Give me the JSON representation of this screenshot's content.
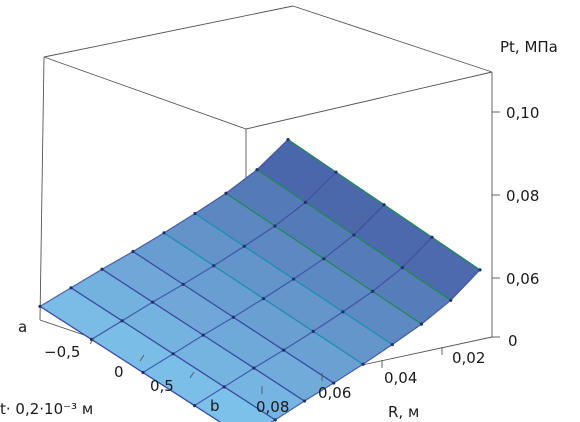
{
  "chart_data": {
    "type": "surface",
    "title": "",
    "z_axis": {
      "label": "Pt, МПа",
      "ticks": [
        "0",
        "0,06",
        "0,08",
        "0,10"
      ],
      "tick_values": [
        0.05,
        0.06,
        0.08,
        0.1
      ]
    },
    "x_axis": {
      "label": "R, м",
      "ticks": [
        "0,08",
        "0,06",
        "0,04",
        "0,02"
      ],
      "range": [
        0.08,
        0.01
      ]
    },
    "y_axis": {
      "label": "t· 0,2·10⁻³ м",
      "ticks": [
        "−0,5",
        "0",
        "0,5"
      ],
      "end_labels": [
        "a",
        "b"
      ]
    },
    "surface_values": {
      "description_axes": "rows: R from 0.09 (front) to 0.01 (back); columns: t from a to b",
      "R": [
        0.09,
        0.08,
        0.07,
        0.06,
        0.05,
        0.04,
        0.03,
        0.02,
        0.01
      ],
      "t": [
        -1,
        -0.5,
        0,
        0.5,
        1
      ],
      "Pt": [
        [
          0.058,
          0.057,
          0.056,
          0.055,
          0.054
        ],
        [
          0.062,
          0.061,
          0.06,
          0.059,
          0.058
        ],
        [
          0.066,
          0.065,
          0.064,
          0.063,
          0.062
        ],
        [
          0.069,
          0.068,
          0.067,
          0.066,
          0.065
        ],
        [
          0.073,
          0.072,
          0.071,
          0.07,
          0.069
        ],
        [
          0.078,
          0.077,
          0.076,
          0.075,
          0.074
        ],
        [
          0.084,
          0.083,
          0.082,
          0.081,
          0.08
        ],
        [
          0.094,
          0.093,
          0.092,
          0.091,
          0.09
        ],
        [
          0.112,
          0.111,
          0.11,
          0.109,
          0.108
        ]
      ]
    },
    "colors": {
      "surface_low": "#7ec4ec",
      "surface_high": "#3d4f9a",
      "grid_line": "#4a4a4a",
      "mesh_front": "#3a4aa0",
      "mesh_mid": "#1c8fb0",
      "mesh_back": "#1e8a57"
    }
  }
}
